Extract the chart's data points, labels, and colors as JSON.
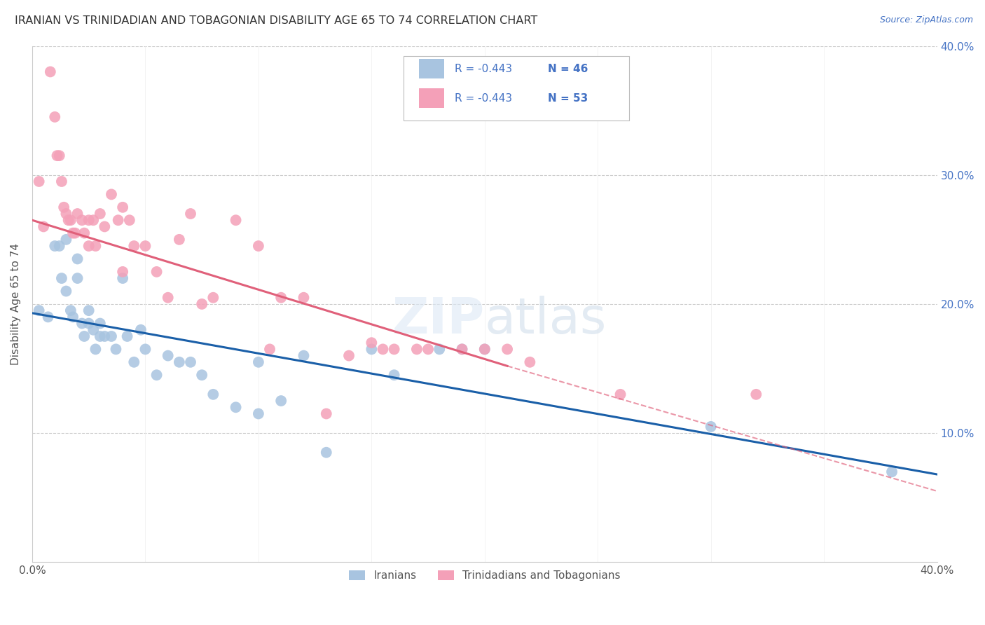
{
  "title": "IRANIAN VS TRINIDADIAN AND TOBAGONIAN DISABILITY AGE 65 TO 74 CORRELATION CHART",
  "source": "Source: ZipAtlas.com",
  "ylabel": "Disability Age 65 to 74",
  "xlim": [
    0.0,
    0.4
  ],
  "ylim": [
    0.0,
    0.4
  ],
  "legend_r1": "R = -0.443",
  "legend_n1": "N = 46",
  "legend_r2": "R = -0.443",
  "legend_n2": "N = 53",
  "legend_label1": "Iranians",
  "legend_label2": "Trinidadians and Tobagonians",
  "color_iranian": "#a8c4e0",
  "color_trinidadian": "#f4a0b8",
  "color_line_iranian": "#1a5fa8",
  "color_line_trinidadian": "#e0607a",
  "iranians_x": [
    0.003,
    0.007,
    0.01,
    0.012,
    0.013,
    0.015,
    0.015,
    0.017,
    0.018,
    0.02,
    0.02,
    0.022,
    0.023,
    0.025,
    0.025,
    0.027,
    0.028,
    0.03,
    0.03,
    0.032,
    0.035,
    0.037,
    0.04,
    0.042,
    0.045,
    0.048,
    0.05,
    0.055,
    0.06,
    0.065,
    0.07,
    0.075,
    0.08,
    0.09,
    0.1,
    0.1,
    0.11,
    0.12,
    0.13,
    0.15,
    0.16,
    0.18,
    0.19,
    0.2,
    0.3,
    0.38
  ],
  "iranians_y": [
    0.195,
    0.19,
    0.245,
    0.245,
    0.22,
    0.21,
    0.25,
    0.195,
    0.19,
    0.235,
    0.22,
    0.185,
    0.175,
    0.195,
    0.185,
    0.18,
    0.165,
    0.185,
    0.175,
    0.175,
    0.175,
    0.165,
    0.22,
    0.175,
    0.155,
    0.18,
    0.165,
    0.145,
    0.16,
    0.155,
    0.155,
    0.145,
    0.13,
    0.12,
    0.155,
    0.115,
    0.125,
    0.16,
    0.085,
    0.165,
    0.145,
    0.165,
    0.165,
    0.165,
    0.105,
    0.07
  ],
  "trinidadians_x": [
    0.003,
    0.005,
    0.008,
    0.01,
    0.011,
    0.012,
    0.013,
    0.014,
    0.015,
    0.016,
    0.017,
    0.018,
    0.019,
    0.02,
    0.022,
    0.023,
    0.025,
    0.025,
    0.027,
    0.028,
    0.03,
    0.032,
    0.035,
    0.038,
    0.04,
    0.04,
    0.043,
    0.045,
    0.05,
    0.055,
    0.06,
    0.065,
    0.07,
    0.075,
    0.08,
    0.09,
    0.1,
    0.105,
    0.11,
    0.12,
    0.13,
    0.14,
    0.15,
    0.155,
    0.16,
    0.17,
    0.175,
    0.19,
    0.2,
    0.21,
    0.22,
    0.26,
    0.32
  ],
  "trinidadians_y": [
    0.295,
    0.26,
    0.38,
    0.345,
    0.315,
    0.315,
    0.295,
    0.275,
    0.27,
    0.265,
    0.265,
    0.255,
    0.255,
    0.27,
    0.265,
    0.255,
    0.265,
    0.245,
    0.265,
    0.245,
    0.27,
    0.26,
    0.285,
    0.265,
    0.275,
    0.225,
    0.265,
    0.245,
    0.245,
    0.225,
    0.205,
    0.25,
    0.27,
    0.2,
    0.205,
    0.265,
    0.245,
    0.165,
    0.205,
    0.205,
    0.115,
    0.16,
    0.17,
    0.165,
    0.165,
    0.165,
    0.165,
    0.165,
    0.165,
    0.165,
    0.155,
    0.13,
    0.13
  ],
  "line_iranian_x0": 0.0,
  "line_iranian_y0": 0.193,
  "line_iranian_x1": 0.4,
  "line_iranian_y1": 0.068,
  "line_trini_solid_x0": 0.0,
  "line_trini_solid_y0": 0.265,
  "line_trini_solid_x1": 0.21,
  "line_trini_solid_y1": 0.152,
  "line_trini_dash_x0": 0.21,
  "line_trini_dash_y0": 0.152,
  "line_trini_dash_x1": 0.4,
  "line_trini_dash_y1": 0.055
}
